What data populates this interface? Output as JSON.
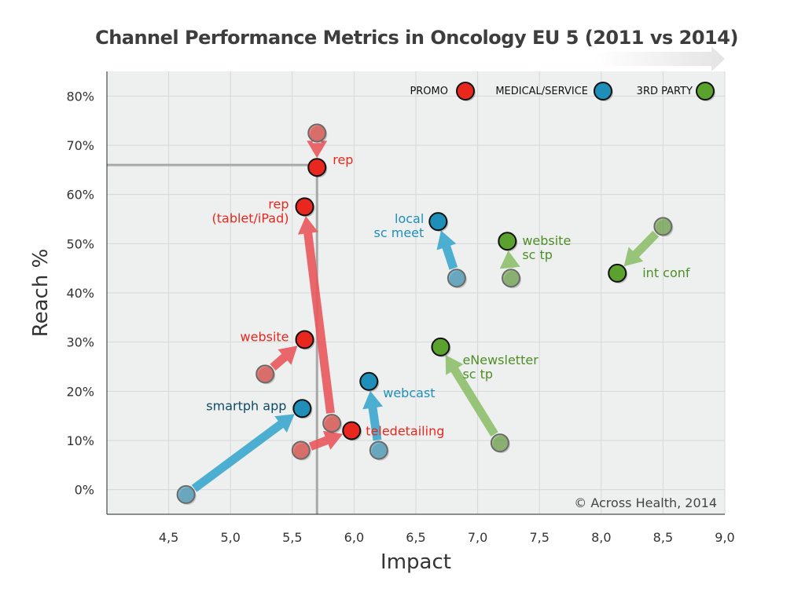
{
  "chart_data": {
    "type": "scatter",
    "title": "Channel Performance Metrics in Oncology EU 5 (2011 vs 2014)",
    "xlabel": "Impact",
    "ylabel": "Reach %",
    "xlim": [
      4.0,
      9.0
    ],
    "ylim": [
      -5,
      85
    ],
    "x_ticks": [
      "4,5",
      "5,0",
      "5,5",
      "6,0",
      "6,5",
      "7,0",
      "7,5",
      "8,0",
      "8,5",
      "9,0"
    ],
    "x_tick_values": [
      4.5,
      5.0,
      5.5,
      6.0,
      6.5,
      7.0,
      7.5,
      8.0,
      8.5,
      9.0
    ],
    "y_ticks": [
      "0%",
      "10%",
      "20%",
      "30%",
      "40%",
      "50%",
      "60%",
      "70%",
      "80%"
    ],
    "y_tick_values": [
      0,
      10,
      20,
      30,
      40,
      50,
      60,
      70,
      80
    ],
    "grid": true,
    "reference_lines": {
      "x": 5.7,
      "y": 66
    },
    "legend_position": "top-right",
    "series": [
      {
        "name": "PROMO",
        "color": "#e8281f",
        "arrow_color": "#e8575c"
      },
      {
        "name": "MEDICAL/SERVICE",
        "color": "#1f8fba",
        "arrow_color": "#3aa6cc"
      },
      {
        "name": "3RD PARTY",
        "color": "#5aa12d",
        "arrow_color": "#8dbf6a"
      }
    ],
    "points": [
      {
        "series": "PROMO",
        "label": "rep",
        "from": [
          5.7,
          72.5
        ],
        "to": [
          5.7,
          65.5
        ]
      },
      {
        "series": "PROMO",
        "label": "rep\n(tablet/iPad)",
        "from": [
          5.82,
          13.5
        ],
        "to": [
          5.6,
          57.5
        ]
      },
      {
        "series": "PROMO",
        "label": "website",
        "from": [
          5.28,
          23.5
        ],
        "to": [
          5.6,
          30.5
        ]
      },
      {
        "series": "PROMO",
        "label": "teledetailing",
        "from": [
          5.57,
          8
        ],
        "to": [
          5.98,
          12
        ]
      },
      {
        "series": "MEDICAL/SERVICE",
        "label": "smartph app",
        "from": [
          4.64,
          -1
        ],
        "to": [
          5.58,
          16.5
        ]
      },
      {
        "series": "MEDICAL/SERVICE",
        "label": "webcast",
        "from": [
          6.2,
          8
        ],
        "to": [
          6.12,
          22
        ]
      },
      {
        "series": "MEDICAL/SERVICE",
        "label": "local\nsc meet",
        "from": [
          6.83,
          43
        ],
        "to": [
          6.68,
          54.5
        ]
      },
      {
        "series": "3RD PARTY",
        "label": "website\nsc tp",
        "from": [
          7.27,
          43
        ],
        "to": [
          7.24,
          50.5
        ]
      },
      {
        "series": "3RD PARTY",
        "label": "int conf",
        "from": [
          8.5,
          53.5
        ],
        "to": [
          8.13,
          44
        ]
      },
      {
        "series": "3RD PARTY",
        "label": "eNewsletter\nsc tp",
        "from": [
          7.18,
          9.5
        ],
        "to": [
          6.7,
          29
        ]
      }
    ],
    "annotation": "© Across Health, 2014"
  }
}
